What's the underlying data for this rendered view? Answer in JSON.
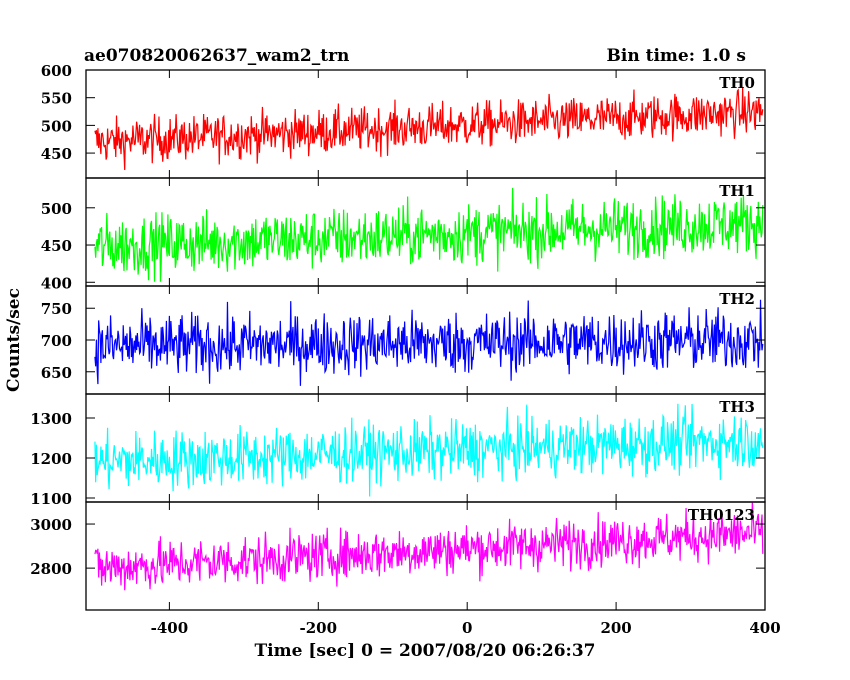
{
  "chart_data": {
    "type": "line",
    "title": "ae070820062637_wam2_trn",
    "bin_time_label": "Bin time: 1.0 s",
    "xlabel": "Time [sec] 0 = 2007/08/20 06:26:37",
    "ylabel": "Counts/sec",
    "xlim": [
      -512,
      400
    ],
    "x_ticks": [
      -400,
      -200,
      0,
      200,
      400
    ],
    "x_step": 1.0,
    "x_start": -500,
    "x_end": 397,
    "grid": false,
    "panels": [
      {
        "name": "TH0",
        "color": "#ff0000",
        "ylim": [
          405,
          600
        ],
        "y_ticks": [
          450,
          500,
          550,
          600
        ],
        "trend_start": 470,
        "trend_end": 525,
        "noise_amplitude": 40
      },
      {
        "name": "TH1",
        "color": "#00ff00",
        "ylim": [
          395,
          540
        ],
        "y_ticks": [
          400,
          450,
          500
        ],
        "trend_start": 448,
        "trend_end": 480,
        "noise_amplitude": 40
      },
      {
        "name": "TH2",
        "color": "#0000ff",
        "ylim": [
          615,
          785
        ],
        "y_ticks": [
          650,
          700,
          750
        ],
        "trend_start": 690,
        "trend_end": 700,
        "noise_amplitude": 48
      },
      {
        "name": "TH3",
        "color": "#00ffff",
        "ylim": [
          1090,
          1360
        ],
        "y_ticks": [
          1100,
          1200,
          1300
        ],
        "trend_start": 1190,
        "trend_end": 1245,
        "noise_amplitude": 72
      },
      {
        "name": "TH0123",
        "color": "#ff00ff",
        "ylim": [
          2610,
          3100
        ],
        "y_ticks": [
          2800,
          3000
        ],
        "trend_start": 2800,
        "trend_end": 2960,
        "noise_amplitude": 110
      }
    ]
  }
}
